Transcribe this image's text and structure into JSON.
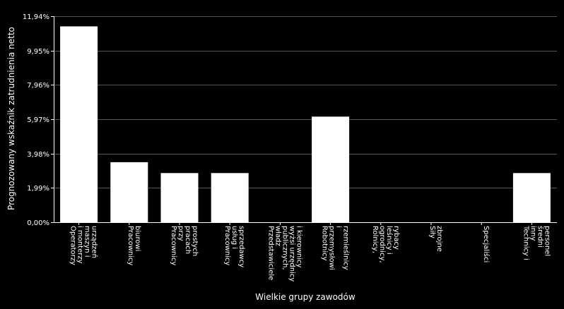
{
  "chart_data": {
    "type": "bar",
    "xlabel": "Wielkie grupy zawodów",
    "ylabel": "Prognozowany wskaźnik zatrudnienia netto",
    "ylim": [
      0,
      11.94
    ],
    "yticks": [
      "0,00%",
      "1,99%",
      "3,98%",
      "5,97%",
      "7,96%",
      "9,95%",
      "11,94%"
    ],
    "ytick_values": [
      0,
      1.99,
      3.98,
      5.97,
      7.96,
      9.95,
      11.94
    ],
    "grid": true,
    "categories": [
      "Operatorzy i monterzy maszyn i urządzeń",
      "Pracownicy biurowi",
      "Pracownicy przy pracach prostych",
      "Pracownicy usług i sprzedawcy",
      "Przedstawiciele władz publicznych, wyżsi urzędnicy i kierownicy",
      "Robotnicy przemysłowi i rzemieślnicy",
      "Rolnicy, ogrodnicy, leśnicy i rybacy",
      "Siły zbrojne",
      "Specjaliści",
      "Technicy i inny średni personel"
    ],
    "category_lines": [
      [
        "Operatorzy",
        "i monterzy",
        "maszyn i",
        "urządzeń"
      ],
      [
        "Pracownicy",
        "biurowi"
      ],
      [
        "Pracownicy",
        "przy",
        "pracach",
        "prostych"
      ],
      [
        "Pracownicy",
        "usług i",
        "sprzedawcy"
      ],
      [
        "Przedstawiciele",
        "władz",
        "publicznych,",
        "wyżsi urzędnicy",
        "i kierownicy"
      ],
      [
        "Robotnicy",
        "przemysłowi",
        "i",
        "rzemieślnicy"
      ],
      [
        "Rolnicy,",
        "ogrodnicy,",
        "leśnicy i",
        "rybacy"
      ],
      [
        "Siły",
        "zbrojne"
      ],
      [
        "Specjaliści"
      ],
      [
        "Technicy i",
        "inny",
        "średni",
        "personel"
      ]
    ],
    "values": [
      11.35,
      3.48,
      2.85,
      2.85,
      0,
      6.12,
      0,
      0,
      0,
      2.85
    ],
    "colors": {
      "bar": "#ffffff",
      "background": "#000000",
      "grid": "#555555",
      "text": "#ffffff"
    }
  }
}
